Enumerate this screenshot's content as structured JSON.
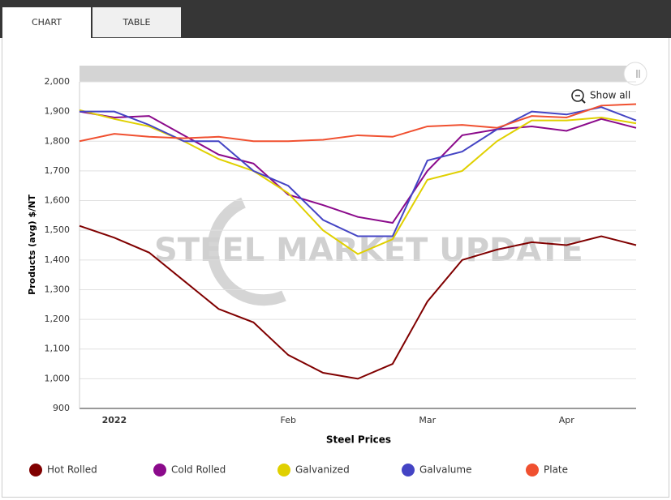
{
  "tabs": [
    "CHART",
    "TABLE"
  ],
  "show_all": "Show all",
  "chart_data": {
    "type": "line",
    "watermark": "STEEL MARKET UPDATE",
    "y_label": "Products (avg) $/NT",
    "x_label": "Steel Prices",
    "categories": [
      null,
      "2022",
      null,
      null,
      null,
      null,
      "Feb",
      null,
      null,
      null,
      "Mar",
      null,
      null,
      null,
      "Apr",
      null,
      null
    ],
    "series": [
      {
        "name": "Hot Rolled",
        "color": "#800000",
        "values": [
          1515,
          1475,
          1425,
          1330,
          1235,
          1190,
          1080,
          1020,
          1000,
          1050,
          1260,
          1400,
          1435,
          1460,
          1450,
          1480,
          1450
        ]
      },
      {
        "name": "Cold Rolled",
        "color": "#8b0a8b",
        "values": [
          1900,
          1880,
          1885,
          1820,
          1755,
          1725,
          1620,
          1585,
          1545,
          1525,
          1700,
          1820,
          1840,
          1850,
          1835,
          1875,
          1845
        ]
      },
      {
        "name": "Galvanized",
        "color": "#e0d000",
        "values": [
          1905,
          1875,
          1850,
          1800,
          1740,
          1700,
          1625,
          1500,
          1420,
          1470,
          1670,
          1700,
          1800,
          1870,
          1870,
          1880,
          1860
        ]
      },
      {
        "name": "Galvalume",
        "color": "#4444c4",
        "values": [
          1900,
          1900,
          1855,
          1800,
          1800,
          1700,
          1650,
          1535,
          1480,
          1480,
          1735,
          1765,
          1840,
          1900,
          1890,
          1915,
          1870
        ]
      },
      {
        "name": "Plate",
        "color": "#f05030",
        "values": [
          1800,
          1825,
          1815,
          1810,
          1815,
          1800,
          1800,
          1805,
          1820,
          1815,
          1850,
          1855,
          1845,
          1885,
          1880,
          1920,
          1925
        ]
      }
    ],
    "ylim": [
      900,
      2000
    ],
    "yticks": [
      900,
      {
        "value": 1000,
        "label": "1,000"
      },
      {
        "value": 1100,
        "label": "1,100"
      },
      {
        "value": 1200,
        "label": "1,200"
      },
      {
        "value": 1300,
        "label": "1,300"
      },
      {
        "value": 1400,
        "label": "1,400"
      },
      {
        "value": 1500,
        "label": "1,500"
      },
      {
        "value": 1600,
        "label": "1,600"
      },
      {
        "value": 1700,
        "label": "1,700"
      },
      {
        "value": 1800,
        "label": "1,800"
      },
      {
        "value": 1900,
        "label": "1,900"
      },
      {
        "value": 2000,
        "label": "2,000"
      }
    ],
    "grid": true
  }
}
